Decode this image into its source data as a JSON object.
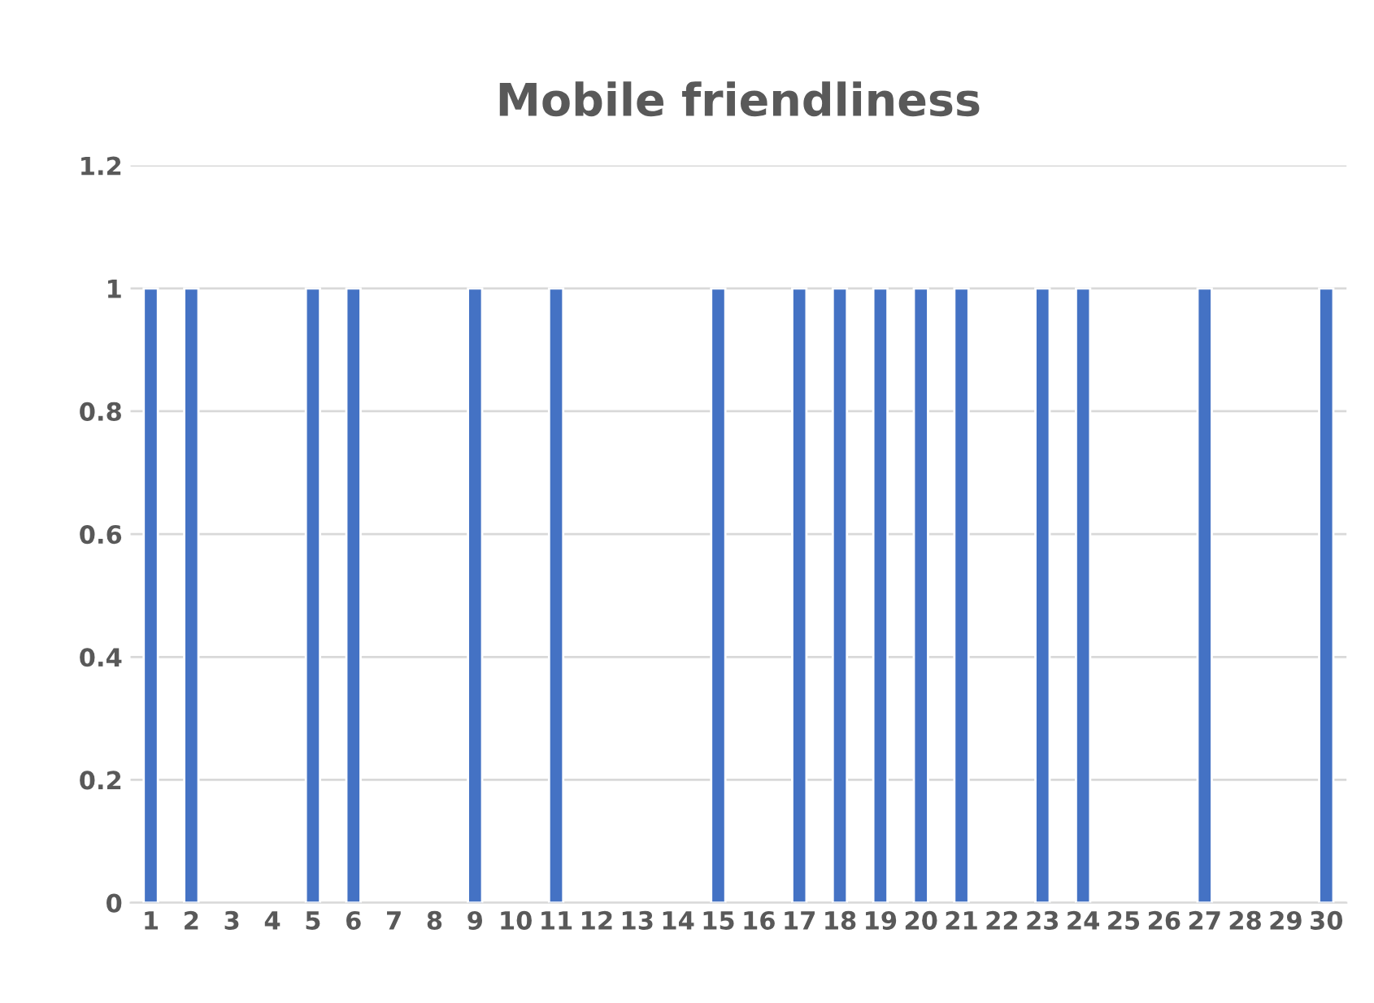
{
  "chart_data": {
    "type": "bar",
    "title": "Mobile friendliness",
    "categories": [
      "1",
      "2",
      "3",
      "4",
      "5",
      "6",
      "7",
      "8",
      "9",
      "10",
      "11",
      "12",
      "13",
      "14",
      "15",
      "16",
      "17",
      "18",
      "19",
      "20",
      "21",
      "22",
      "23",
      "24",
      "25",
      "26",
      "27",
      "28",
      "29",
      "30"
    ],
    "values": [
      1,
      1,
      null,
      null,
      1,
      1,
      null,
      null,
      1,
      null,
      1,
      null,
      null,
      null,
      1,
      null,
      1,
      1,
      1,
      1,
      1,
      null,
      1,
      1,
      null,
      null,
      1,
      null,
      null,
      1
    ],
    "color": "#4472c4",
    "ylim": [
      0,
      1.2
    ],
    "yticks": [
      0,
      0.2,
      0.4,
      0.6,
      0.8,
      1,
      1.2
    ],
    "grid": "y"
  }
}
